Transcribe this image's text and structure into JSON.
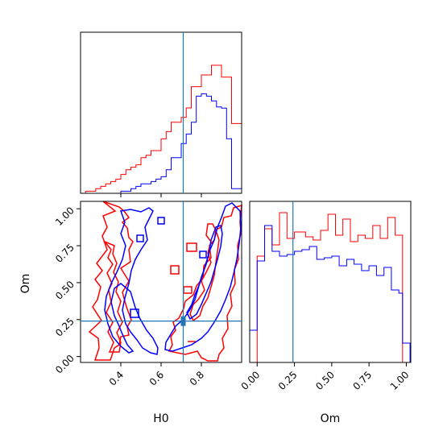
{
  "chart_data": {
    "type": "corner",
    "colors": {
      "series_a": "#ff0000",
      "series_b": "#0000ff",
      "truth": "#1f77b4"
    },
    "truth": {
      "H0": 0.71,
      "Om": 0.24
    },
    "panels": [
      {
        "id": "hist-H0",
        "type": "histogram",
        "x_range": [
          0.2,
          1.0
        ],
        "y_range": [
          0,
          1.0
        ],
        "bin_edges": [
          0.2,
          0.225,
          0.25,
          0.275,
          0.3,
          0.325,
          0.35,
          0.375,
          0.4,
          0.425,
          0.45,
          0.475,
          0.5,
          0.525,
          0.55,
          0.575,
          0.6,
          0.625,
          0.65,
          0.675,
          0.7,
          0.725,
          0.75,
          0.775,
          0.8,
          0.825,
          0.85,
          0.875,
          0.9,
          0.925,
          0.95,
          0.975,
          1.0
        ],
        "series": [
          {
            "color_key": "series_a",
            "counts": [
              0,
              0.013,
              0.013,
              0.029,
              0.043,
              0.059,
              0.073,
              0.088,
              0.117,
              0.146,
              0.162,
              0.177,
              0.221,
              0.236,
              0.265,
              0.265,
              0.338,
              0.383,
              0.441,
              0.441,
              0.471,
              0.53,
              0.662,
              0.662,
              0.735,
              0.735,
              0.795,
              0.795,
              0.721,
              0.721,
              0.433,
              0.433
            ]
          },
          {
            "color_key": "series_b",
            "counts": [
              0,
              0,
              0,
              0,
              0,
              0,
              0,
              0,
              0.013,
              0.013,
              0.029,
              0.043,
              0.059,
              0.059,
              0.073,
              0.088,
              0.103,
              0.146,
              0.221,
              0.221,
              0.309,
              0.368,
              0.441,
              0.603,
              0.618,
              0.603,
              0.574,
              0.536,
              0.529,
              0.339,
              0.029,
              0.029
            ]
          }
        ]
      },
      {
        "id": "contour-H0-Om",
        "type": "contour",
        "x_range": [
          0.2,
          1.0
        ],
        "y_range": [
          -0.04,
          1.05
        ],
        "x_ticks": [
          0.4,
          0.6,
          0.8
        ],
        "y_ticks": [
          0.0,
          0.25,
          0.5,
          0.75,
          1.0
        ],
        "x_tick_labels": [
          "0.4",
          "0.6",
          "0.8"
        ],
        "y_tick_labels": [
          "0.00",
          "0.25",
          "0.50",
          "0.75",
          "1.00"
        ],
        "xlabel": "H0",
        "ylabel": "Om"
      },
      {
        "id": "hist-Om",
        "type": "histogram",
        "x_range": [
          -0.05,
          1.03
        ],
        "y_range": [
          0,
          1.0
        ],
        "x_ticks": [
          0.0,
          0.25,
          0.5,
          0.75,
          1.0
        ],
        "x_tick_labels": [
          "0.00",
          "0.25",
          "0.50",
          "0.75",
          "1.00"
        ],
        "xlabel": "Om",
        "bin_edges": [
          -0.05,
          -0.025,
          0.0,
          0.025,
          0.05,
          0.075,
          0.1,
          0.125,
          0.15,
          0.175,
          0.2,
          0.225,
          0.25,
          0.275,
          0.3,
          0.325,
          0.35,
          0.375,
          0.4,
          0.425,
          0.45,
          0.475,
          0.5,
          0.525,
          0.55,
          0.575,
          0.6,
          0.625,
          0.65,
          0.675,
          0.7,
          0.725,
          0.75,
          0.775,
          0.8,
          0.825,
          0.85,
          0.875,
          0.9,
          0.925,
          0.95,
          0.975,
          1.0,
          1.025
        ],
        "series": [
          {
            "color_key": "series_a",
            "counts": [
              0,
              0,
              0.66,
              0.66,
              0.83,
              0.83,
              0.73,
              0.73,
              0.93,
              0.93,
              0.77,
              0.77,
              0.81,
              0.81,
              0.81,
              0.78,
              0.78,
              0.76,
              0.76,
              0.82,
              0.82,
              0.92,
              0.92,
              0.79,
              0.79,
              0.89,
              0.89,
              0.75,
              0.75,
              0.79,
              0.79,
              0.77,
              0.77,
              0.85,
              0.85,
              0.77,
              0.77,
              0.9,
              0.9,
              0.79,
              0.79,
              0,
              0
            ]
          },
          {
            "color_key": "series_b",
            "counts": [
              0.2,
              0.2,
              0.63,
              0.63,
              0.85,
              0.85,
              0.69,
              0.69,
              0.66,
              0.66,
              0.67,
              0.67,
              0.69,
              0.69,
              0.7,
              0.7,
              0.72,
              0.72,
              0.64,
              0.64,
              0.65,
              0.65,
              0.66,
              0.66,
              0.6,
              0.6,
              0.64,
              0.64,
              0.61,
              0.61,
              0.57,
              0.57,
              0.6,
              0.6,
              0.54,
              0.54,
              0.59,
              0.59,
              0.45,
              0.45,
              0.43,
              0.12,
              0.12
            ]
          }
        ]
      }
    ]
  }
}
